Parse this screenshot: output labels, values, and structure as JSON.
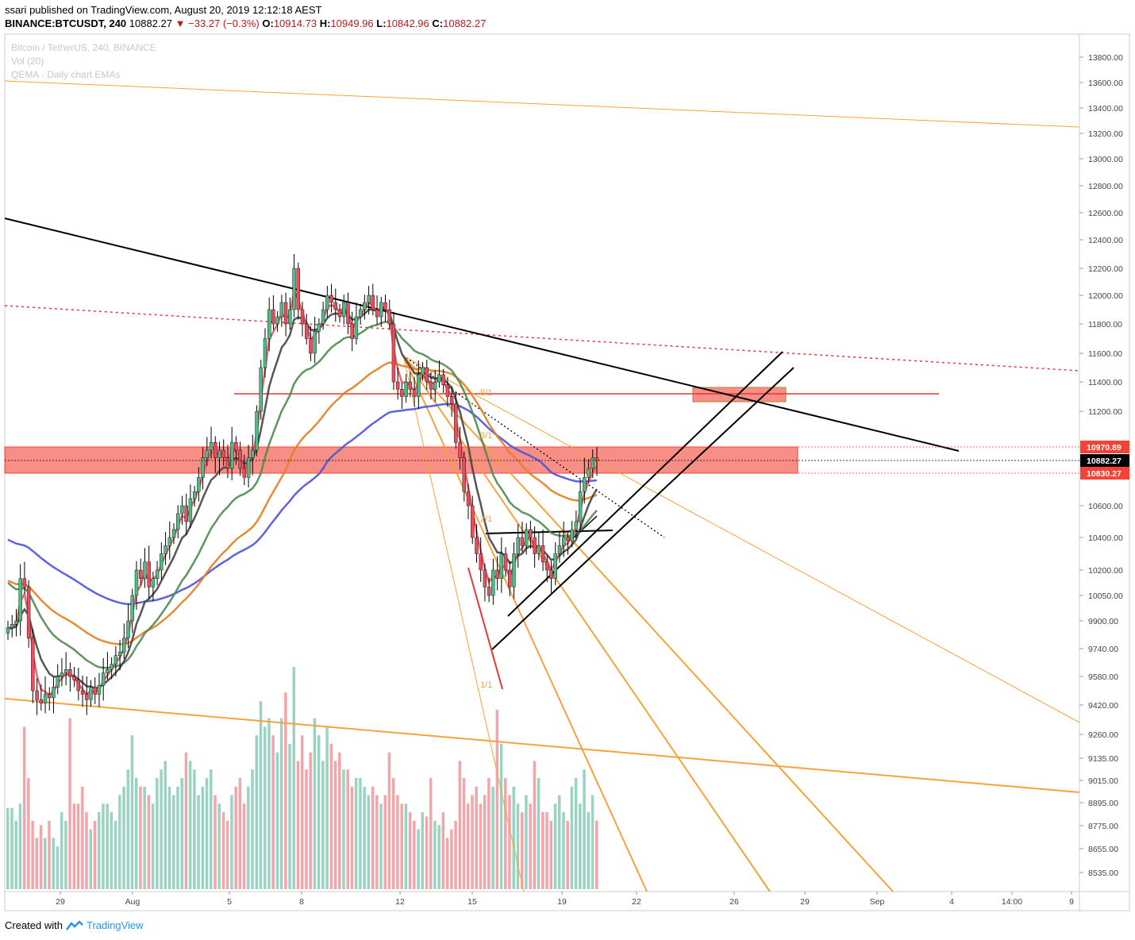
{
  "header": {
    "user": "ssari",
    "published": "published on TradingView.com, August 20, 2019 12:12:18 AEST",
    "symbol": "BINANCE:BTCUSDT, 240",
    "last": "10882.27",
    "change": "−33.27 (−0.3%)",
    "o_label": "O:",
    "o": "10914.73",
    "h_label": "H:",
    "h": "10949.96",
    "l_label": "L:",
    "l": "10842.96",
    "c_label": "C:",
    "c": "10882.27"
  },
  "legend": {
    "line1": "Bitcoin / TetherUS, 240, BINANCE",
    "line2": "Vol (20)",
    "line3": "QEMA - Daily chart EMAs"
  },
  "footer": {
    "created_with": "Created with",
    "brand": "TradingView"
  },
  "colors": {
    "up": "#53b987",
    "down": "#eb4d5c",
    "zone": "#f44336",
    "fan": "#f7a23a",
    "ema_blue": "#4a54d8",
    "ema_orange": "#e67e22",
    "ema_green": "#4e8a4e"
  },
  "chart_data": {
    "type": "candlestick",
    "symbol": "BTCUSDT",
    "interval": "240",
    "y_ticks": [
      {
        "label": "13800.00",
        "value": 13800
      },
      {
        "label": "13600.00",
        "value": 13600
      },
      {
        "label": "13400.00",
        "value": 13400
      },
      {
        "label": "13200.00",
        "value": 13200
      },
      {
        "label": "13000.00",
        "value": 13000
      },
      {
        "label": "12800.00",
        "value": 12800
      },
      {
        "label": "12600.00",
        "value": 12600
      },
      {
        "label": "12400.00",
        "value": 12400
      },
      {
        "label": "12200.00",
        "value": 12200
      },
      {
        "label": "12000.00",
        "value": 12000
      },
      {
        "label": "11800.00",
        "value": 11800
      },
      {
        "label": "11600.00",
        "value": 11600
      },
      {
        "label": "11400.00",
        "value": 11400
      },
      {
        "label": "11200.00",
        "value": 11200
      },
      {
        "label": "10600.00",
        "value": 10600
      },
      {
        "label": "10400.00",
        "value": 10400
      },
      {
        "label": "10200.00",
        "value": 10200
      },
      {
        "label": "10050.00",
        "value": 10050
      },
      {
        "label": "9900.00",
        "value": 9900
      },
      {
        "label": "9740.00",
        "value": 9740
      },
      {
        "label": "9580.00",
        "value": 9580
      },
      {
        "label": "9420.00",
        "value": 9420
      },
      {
        "label": "9260.00",
        "value": 9260
      },
      {
        "label": "9135.00",
        "value": 9135
      },
      {
        "label": "9015.00",
        "value": 9015
      },
      {
        "label": "8895.00",
        "value": 8895
      },
      {
        "label": "8775.00",
        "value": 8775
      },
      {
        "label": "8655.00",
        "value": 8655
      },
      {
        "label": "8535.00",
        "value": 8535
      }
    ],
    "price_labels": [
      {
        "label": "10970.89",
        "value": 10970.89,
        "color": "#f44336"
      },
      {
        "label": "10882.27",
        "value": 10882.27,
        "color": "#000000"
      },
      {
        "label": "10830.27",
        "value": 10830.27,
        "color": "#f44336"
      }
    ],
    "x_ticks": [
      "29",
      "Aug",
      "5",
      "8",
      "12",
      "15",
      "19",
      "22",
      "26",
      "29",
      "Sep",
      "4",
      "14:00",
      "9"
    ],
    "closes": [
      9860,
      9880,
      9900,
      10150,
      10100,
      9800,
      9500,
      9450,
      9430,
      9480,
      9460,
      9520,
      9580,
      9600,
      9620,
      9580,
      9560,
      9500,
      9480,
      9450,
      9520,
      9480,
      9530,
      9600,
      9620,
      9650,
      9700,
      9720,
      9800,
      9900,
      10050,
      10200,
      10150,
      10250,
      10100,
      10150,
      10200,
      10300,
      10350,
      10400,
      10450,
      10550,
      10600,
      10500,
      10650,
      10700,
      10800,
      10900,
      10950,
      11000,
      10900,
      10950,
      10900,
      10850,
      11000,
      10950,
      10850,
      10800,
      10900,
      10950,
      11200,
      11500,
      11700,
      11900,
      11800,
      11850,
      11950,
      11800,
      11900,
      12200,
      11900,
      11800,
      11700,
      11600,
      11750,
      11800,
      11900,
      12000,
      11950,
      11900,
      11850,
      11950,
      11800,
      11700,
      11850,
      11900,
      11950,
      12000,
      11900,
      11850,
      11950,
      11900,
      11800,
      11400,
      11350,
      11300,
      11400,
      11350,
      11300,
      11450,
      11500,
      11400,
      11350,
      11400,
      11450,
      11380,
      11300,
      11250,
      11000,
      10900,
      10700,
      10600,
      10400,
      10300,
      10200,
      10100,
      10050,
      10200,
      10150,
      10300,
      10200,
      10100,
      10300,
      10400,
      10350,
      10450,
      10400,
      10300,
      10350,
      10250,
      10200,
      10150,
      10300,
      10350,
      10400,
      10380,
      10450,
      10500,
      10700,
      10800,
      10850,
      10900,
      10882
    ],
    "volumes": [
      95,
      95,
      80,
      100,
      190,
      130,
      80,
      60,
      75,
      60,
      80,
      60,
      50,
      90,
      80,
      200,
      100,
      100,
      120,
      90,
      70,
      80,
      90,
      100,
      100,
      90,
      80,
      110,
      120,
      140,
      180,
      130,
      120,
      120,
      110,
      100,
      130,
      140,
      150,
      120,
      110,
      120,
      130,
      160,
      150,
      140,
      110,
      120,
      130,
      140,
      110,
      100,
      90,
      80,
      110,
      120,
      130,
      100,
      120,
      140,
      180,
      220,
      190,
      200,
      180,
      160,
      200,
      230,
      170,
      260,
      150,
      180,
      140,
      160,
      200,
      180,
      150,
      190,
      170,
      150,
      160,
      140,
      140,
      120,
      130,
      130,
      120,
      110,
      120,
      110,
      100,
      110,
      160,
      130,
      110,
      100,
      100,
      90,
      80,
      70,
      90,
      85,
      130,
      80,
      75,
      90,
      60,
      70,
      80,
      150,
      130,
      100,
      110,
      120,
      100,
      110,
      130,
      120,
      210,
      170,
      130,
      110,
      120,
      100,
      90,
      110,
      100,
      150,
      130,
      90,
      90,
      80,
      100,
      110,
      90,
      80,
      120,
      130,
      100,
      140,
      90,
      110,
      80
    ],
    "ema_overlays": [
      {
        "name": "blue",
        "color": "#4a54d8"
      },
      {
        "name": "orange",
        "color": "#e67e22"
      },
      {
        "name": "green",
        "color": "#4e8a4e"
      },
      {
        "name": "dark",
        "color": "#444444"
      },
      {
        "name": "pink",
        "color": "#e0575f"
      }
    ],
    "fan_labels": [
      "8/1",
      "3/1",
      "2/1",
      "1/1"
    ],
    "zones": [
      {
        "from": 10830.27,
        "to": 10970.89
      },
      {
        "from": 11260,
        "to": 11360
      }
    ],
    "horizontal_level": 11320
  }
}
